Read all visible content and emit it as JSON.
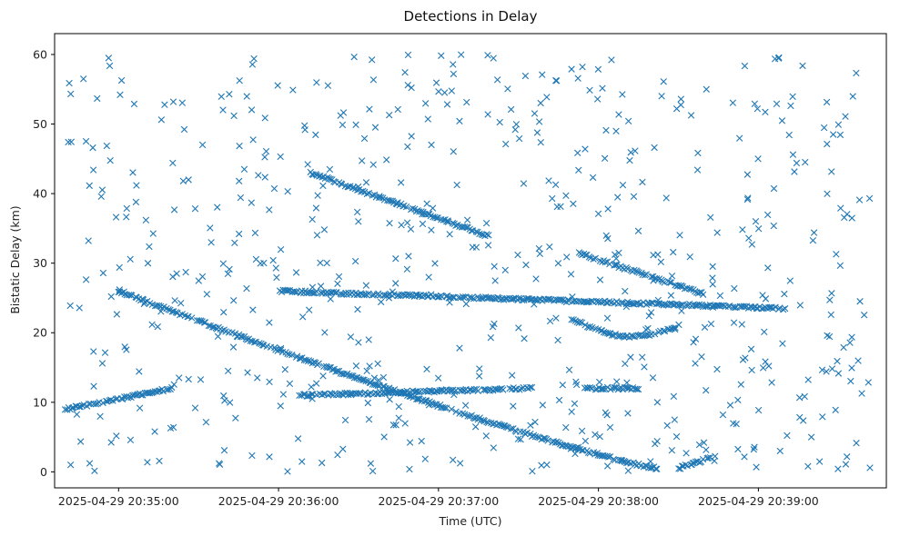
{
  "chart_data": {
    "type": "scatter",
    "title": "Detections in Delay",
    "xlabel": "Time (UTC)",
    "ylabel": "Bistatic Delay (km)",
    "marker": "x",
    "color": "#1f77b4",
    "xlim": [
      "2025-04-29 20:34:36",
      "2025-04-29 20:39:48"
    ],
    "ylim": [
      -2.3,
      63
    ],
    "x_ticks": [
      "2025-04-29 20:35:00",
      "2025-04-29 20:36:00",
      "2025-04-29 20:37:00",
      "2025-04-29 20:38:00",
      "2025-04-29 20:39:00"
    ],
    "y_ticks": [
      0,
      10,
      20,
      30,
      40,
      50,
      60
    ],
    "grid": false,
    "tracks": [
      {
        "t_start": "2025-04-29 20:35:00",
        "t_end": "2025-04-29 20:38:22",
        "delay_start": 26.0,
        "delay_end": 0.5,
        "shape": "curve"
      },
      {
        "t_start": "2025-04-29 20:36:12",
        "t_end": "2025-04-29 20:37:18",
        "delay_start": 43.0,
        "delay_end": 34.0,
        "shape": "line"
      },
      {
        "t_start": "2025-04-29 20:36:00",
        "t_end": "2025-04-29 20:39:10",
        "delay_start": 26.0,
        "delay_end": 23.5,
        "shape": "line"
      },
      {
        "t_start": "2025-04-29 20:37:52",
        "t_end": "2025-04-29 20:38:40",
        "delay_start": 31.5,
        "delay_end": 25.5,
        "shape": "line"
      },
      {
        "t_start": "2025-04-29 20:37:50",
        "t_end": "2025-04-29 20:38:30",
        "delay_start": 22.0,
        "delay_end": 21.0,
        "shape": "dip"
      },
      {
        "t_start": "2025-04-29 20:36:08",
        "t_end": "2025-04-29 20:37:35",
        "delay_start": 11.0,
        "delay_end": 12.0,
        "shape": "line"
      },
      {
        "t_start": "2025-04-29 20:34:40",
        "t_end": "2025-04-29 20:35:20",
        "delay_start": 9.0,
        "delay_end": 12.0,
        "shape": "line"
      },
      {
        "t_start": "2025-04-29 20:37:55",
        "t_end": "2025-04-29 20:38:15",
        "delay_start": 12.0,
        "delay_end": 12.0,
        "shape": "line"
      },
      {
        "t_start": "2025-04-29 20:38:30",
        "t_end": "2025-04-29 20:38:42",
        "delay_start": 0.5,
        "delay_end": 2.0,
        "shape": "line"
      }
    ],
    "clutter": {
      "count": 620,
      "delay_range": [
        0,
        60
      ],
      "t_range": [
        "2025-04-29 20:34:40",
        "2025-04-29 20:39:42"
      ]
    }
  }
}
